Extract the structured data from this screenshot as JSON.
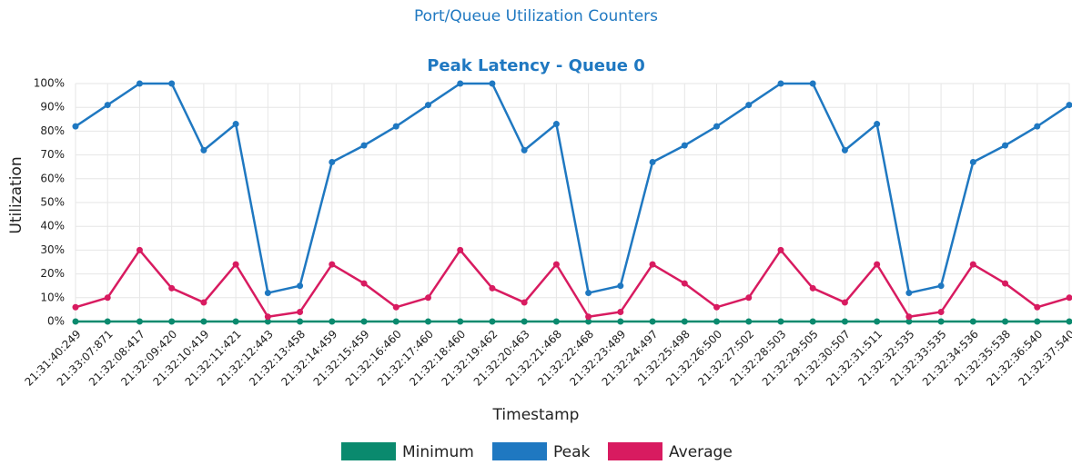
{
  "chart_data": {
    "type": "line",
    "suptitle": "Port/Queue Utilization Counters",
    "title": "Peak Latency - Queue 0",
    "xlabel": "Timestamp",
    "ylabel": "Utilization",
    "categories": [
      "21:31:40:249",
      "21:33:07:871",
      "21:32:08:417",
      "21:32:09:420",
      "21:32:10:419",
      "21:32:11:421",
      "21:32:12:443",
      "21:32:13:458",
      "21:32:14:459",
      "21:32:15:459",
      "21:32:16:460",
      "21:32:17:460",
      "21:32:18:460",
      "21:32:19:462",
      "21:32:20:463",
      "21:32:21:468",
      "21:32:22:468",
      "21:32:23:489",
      "21:32:24:497",
      "21:32:25:498",
      "21:32:26:500",
      "21:32:27:502",
      "21:32:28:503",
      "21:32:29:505",
      "21:32:30:507",
      "21:32:31:511",
      "21:32:32:535",
      "21:32:33:535",
      "21:32:34:536",
      "21:32:35:538",
      "21:32:36:540",
      "21:32:37:540"
    ],
    "series": [
      {
        "name": "Minimum",
        "color": "#0a8a6e",
        "values": [
          0,
          0,
          0,
          0,
          0,
          0,
          0,
          0,
          0,
          0,
          0,
          0,
          0,
          0,
          0,
          0,
          0,
          0,
          0,
          0,
          0,
          0,
          0,
          0,
          0,
          0,
          0,
          0,
          0,
          0,
          0,
          0
        ]
      },
      {
        "name": "Peak",
        "color": "#1f78c1",
        "values": [
          82,
          91,
          100,
          100,
          72,
          83,
          12,
          15,
          67,
          74,
          82,
          91,
          100,
          100,
          72,
          83,
          12,
          15,
          67,
          74,
          82,
          91,
          100,
          100,
          72,
          83,
          12,
          15,
          67,
          74,
          82,
          91
        ]
      },
      {
        "name": "Average",
        "color": "#d81b60",
        "values": [
          6,
          10,
          30,
          14,
          8,
          24,
          2,
          4,
          24,
          16,
          6,
          10,
          30,
          14,
          8,
          24,
          2,
          4,
          24,
          16,
          6,
          10,
          30,
          14,
          8,
          24,
          2,
          4,
          24,
          16,
          6,
          10
        ]
      }
    ],
    "ylim": [
      0,
      100
    ],
    "yticks": [
      {
        "value": 0,
        "label": "0%"
      },
      {
        "value": 10,
        "label": "10%"
      },
      {
        "value": 20,
        "label": "20%"
      },
      {
        "value": 30,
        "label": "30%"
      },
      {
        "value": 40,
        "label": "40%"
      },
      {
        "value": 50,
        "label": "50%"
      },
      {
        "value": 60,
        "label": "60%"
      },
      {
        "value": 70,
        "label": "70%"
      },
      {
        "value": 80,
        "label": "80%"
      },
      {
        "value": 90,
        "label": "90%"
      },
      {
        "value": 100,
        "label": "100%"
      }
    ],
    "grid": true
  }
}
